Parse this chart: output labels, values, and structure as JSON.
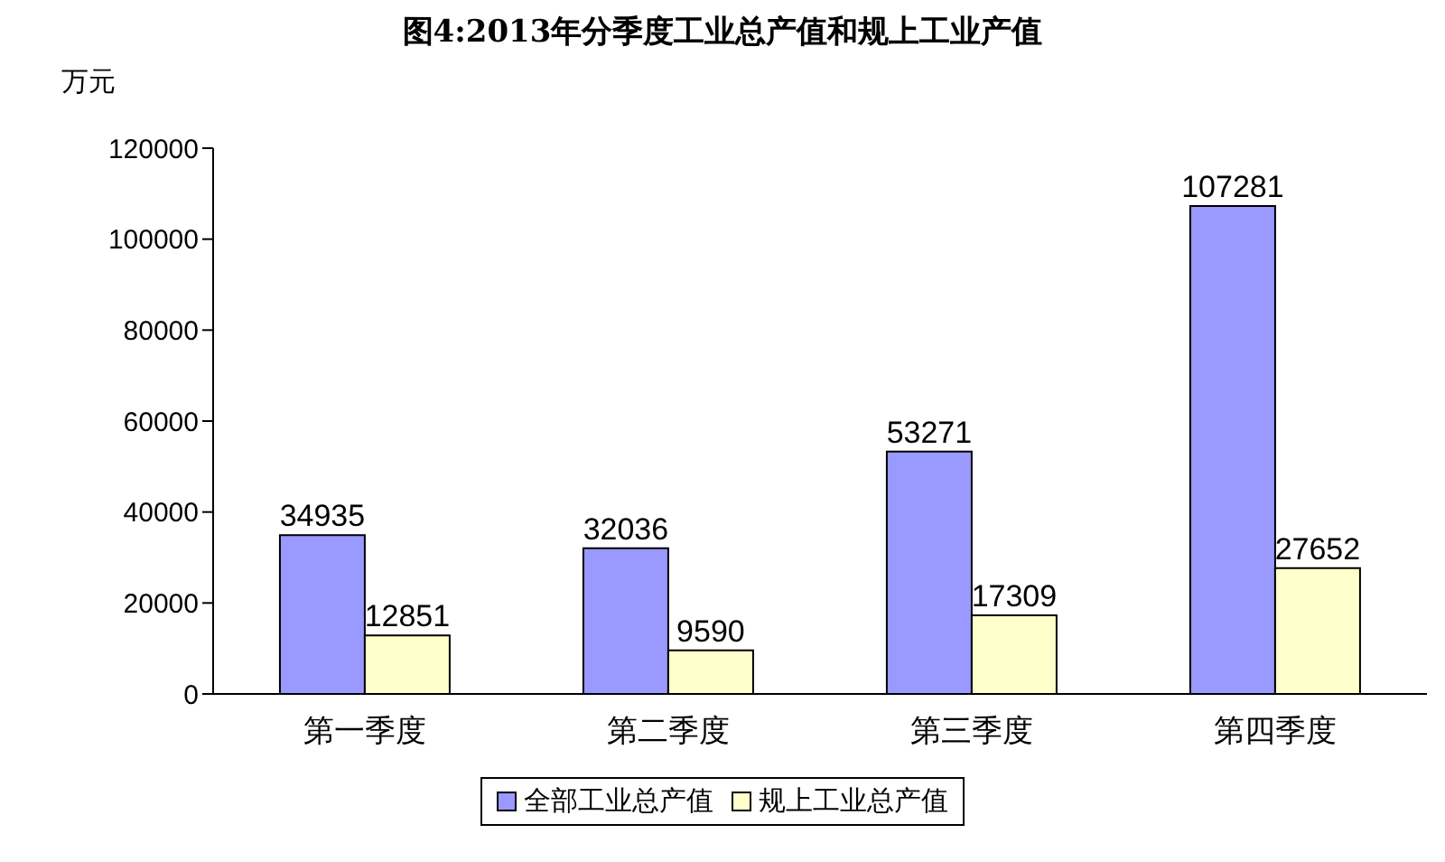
{
  "chart_data": {
    "type": "bar",
    "title": "图4:2013年分季度工业总产值和规上工业产值",
    "ylabel": "万元",
    "categories": [
      "第一季度",
      "第二季度",
      "第三季度",
      "第四季度"
    ],
    "series": [
      {
        "name": "全部工业总产值",
        "color": "#9999ff",
        "values": [
          34935,
          32036,
          53271,
          107281
        ]
      },
      {
        "name": "规上工业总产值",
        "color": "#ffffcc",
        "values": [
          12851,
          9590,
          17309,
          27652
        ]
      }
    ],
    "ylim": [
      0,
      120000
    ],
    "yticks": [
      0,
      20000,
      40000,
      60000,
      80000,
      100000,
      120000
    ],
    "data_labels": true,
    "legend": "bottom",
    "grid": false
  }
}
